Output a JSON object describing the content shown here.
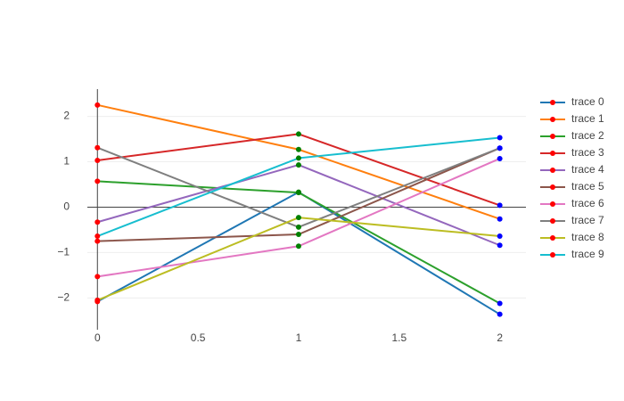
{
  "chart_data": {
    "type": "line",
    "x": [
      0,
      1,
      2
    ],
    "marker_colors": [
      "#ff0000",
      "#008000",
      "#0000ff"
    ],
    "series": [
      {
        "name": "trace 0",
        "color": "#1f77b4",
        "values": [
          -2.08,
          0.33,
          -2.36
        ]
      },
      {
        "name": "trace 1",
        "color": "#ff7f0e",
        "values": [
          2.25,
          1.27,
          -0.26
        ]
      },
      {
        "name": "trace 2",
        "color": "#2ca02c",
        "values": [
          0.57,
          0.32,
          -2.12
        ]
      },
      {
        "name": "trace 3",
        "color": "#d62728",
        "values": [
          1.03,
          1.61,
          0.04
        ]
      },
      {
        "name": "trace 4",
        "color": "#9467bd",
        "values": [
          -0.33,
          0.93,
          -0.84
        ]
      },
      {
        "name": "trace 5",
        "color": "#8c564b",
        "values": [
          -0.75,
          -0.6,
          1.3
        ]
      },
      {
        "name": "trace 6",
        "color": "#e377c2",
        "values": [
          -1.53,
          -0.86,
          1.07
        ]
      },
      {
        "name": "trace 7",
        "color": "#7f7f7f",
        "values": [
          1.31,
          -0.44,
          1.3
        ]
      },
      {
        "name": "trace 8",
        "color": "#bcbd22",
        "values": [
          -2.05,
          -0.23,
          -0.64
        ]
      },
      {
        "name": "trace 9",
        "color": "#17becf",
        "values": [
          -0.64,
          1.08,
          1.53
        ]
      }
    ],
    "xlim": [
      -0.05,
      2.13
    ],
    "ylim": [
      -2.7,
      2.6
    ],
    "xticks": [
      0,
      0.5,
      1,
      1.5,
      2
    ],
    "yticks": [
      {
        "value": -2,
        "label": "−2"
      },
      {
        "value": -1,
        "label": "−1"
      },
      0,
      1,
      2
    ],
    "grid": true,
    "legend": "right"
  }
}
